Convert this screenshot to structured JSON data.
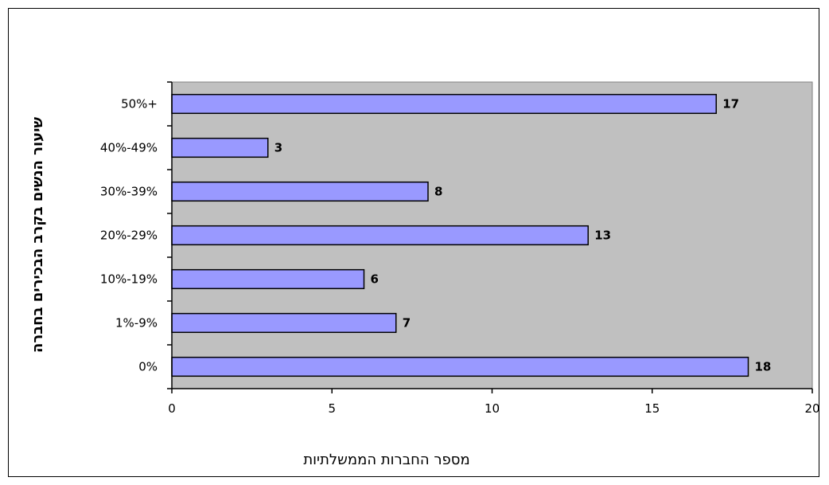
{
  "chart_data": {
    "type": "bar",
    "orientation": "horizontal",
    "categories": [
      "0%",
      "1%-9%",
      "10%-19%",
      "20%-29%",
      "30%-39%",
      "40%-49%",
      "50%+"
    ],
    "values": [
      18,
      7,
      6,
      13,
      8,
      3,
      17
    ],
    "data_labels": [
      "18",
      "7",
      "6",
      "13",
      "8",
      "3",
      "17"
    ],
    "xlabel": "מספר החברות הממשלתיות",
    "ylabel": "שיעור הנשים בקרב הבכירים בחברה",
    "xlim": [
      0,
      20
    ],
    "xticks": [
      0,
      5,
      10,
      15,
      20
    ],
    "xtick_labels": [
      "0",
      "5",
      "10",
      "15",
      "20"
    ],
    "grid": false,
    "legend": "none",
    "colors": {
      "bar_fill": "#9999ff",
      "bar_stroke": "#000000",
      "plot_background": "#c0c0c0",
      "chart_background": "#ffffff"
    }
  }
}
